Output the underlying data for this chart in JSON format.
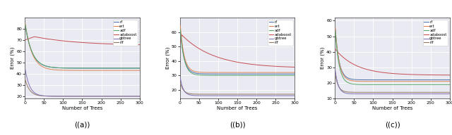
{
  "subplots": [
    {
      "label": "((a))",
      "ylabel": "Error (%)",
      "xlabel": "Number of Trees",
      "xlim": [
        0,
        300
      ],
      "ylim": [
        18,
        90
      ],
      "yticks": [
        20,
        30,
        40,
        50,
        60,
        70,
        80
      ],
      "series": [
        {
          "name": "rf",
          "color": "#4c72b0",
          "type": "decay_fast",
          "start": 85,
          "end": 45,
          "tau": 18
        },
        {
          "name": "ert",
          "color": "#dd8452",
          "type": "decay_fast",
          "start": 87,
          "end": 43,
          "tau": 18
        },
        {
          "name": "adf",
          "color": "#55a868",
          "type": "decay_fast",
          "start": 86,
          "end": 45,
          "tau": 18
        },
        {
          "name": "adaboost",
          "color": "#c44e52",
          "type": "adaboost_a",
          "start": 70,
          "peak": 73,
          "end": 65
        },
        {
          "name": "gbtree",
          "color": "#8172b3",
          "type": "decay_fast",
          "start": 46,
          "end": 20,
          "tau": 12
        },
        {
          "name": "rlf",
          "color": "#937860",
          "type": "decay_fast",
          "start": 36,
          "end": 20,
          "tau": 12
        }
      ]
    },
    {
      "label": "((b))",
      "ylabel": "Error (%)",
      "xlabel": "Number of Trees",
      "xlim": [
        0,
        300
      ],
      "ylim": [
        14,
        70
      ],
      "yticks": [
        20,
        30,
        40,
        50,
        60
      ],
      "series": [
        {
          "name": "rf",
          "color": "#4c72b0",
          "type": "decay_fast",
          "start": 65,
          "end": 31,
          "tau": 10
        },
        {
          "name": "ert",
          "color": "#dd8452",
          "type": "decay_fast",
          "start": 68,
          "end": 32,
          "tau": 10
        },
        {
          "name": "adf",
          "color": "#55a868",
          "type": "decay_fast",
          "start": 65,
          "end": 30,
          "tau": 10
        },
        {
          "name": "adaboost",
          "color": "#c44e52",
          "type": "adaboost_b",
          "start": 58,
          "end": 35
        },
        {
          "name": "gbtree",
          "color": "#8172b3",
          "type": "decay_fast",
          "start": 30,
          "end": 16,
          "tau": 8
        },
        {
          "name": "rlf",
          "color": "#937860",
          "type": "decay_fast",
          "start": 26,
          "end": 17,
          "tau": 8
        }
      ]
    },
    {
      "label": "((c))",
      "ylabel": "Error (%)",
      "xlabel": "Number of Trees",
      "xlim": [
        0,
        300
      ],
      "ylim": [
        10,
        62
      ],
      "yticks": [
        10,
        20,
        30,
        40,
        50,
        60
      ],
      "series": [
        {
          "name": "rf",
          "color": "#4c72b0",
          "type": "decay_fast",
          "start": 58,
          "end": 22,
          "tau": 10
        },
        {
          "name": "ert",
          "color": "#dd8452",
          "type": "decay_fast",
          "start": 59,
          "end": 21,
          "tau": 10
        },
        {
          "name": "adf",
          "color": "#55a868",
          "type": "decay_fast",
          "start": 57,
          "end": 19,
          "tau": 10
        },
        {
          "name": "adaboost",
          "color": "#c44e52",
          "type": "decay_fast",
          "start": 42,
          "end": 25,
          "tau": 55
        },
        {
          "name": "gbtree",
          "color": "#8172b3",
          "type": "decay_fast",
          "start": 30,
          "end": 13,
          "tau": 8
        },
        {
          "name": "rlf",
          "color": "#937860",
          "type": "decay_fast",
          "start": 27,
          "end": 14,
          "tau": 8
        }
      ]
    }
  ],
  "bg_color": "#eaeaf2",
  "grid_color": "#ffffff",
  "legend_labels": [
    "rf",
    "ert",
    "adf",
    "adaboost",
    "gbtree",
    "rlf"
  ],
  "legend_colors": [
    "#4c72b0",
    "#dd8452",
    "#55a868",
    "#c44e52",
    "#8172b3",
    "#937860"
  ]
}
